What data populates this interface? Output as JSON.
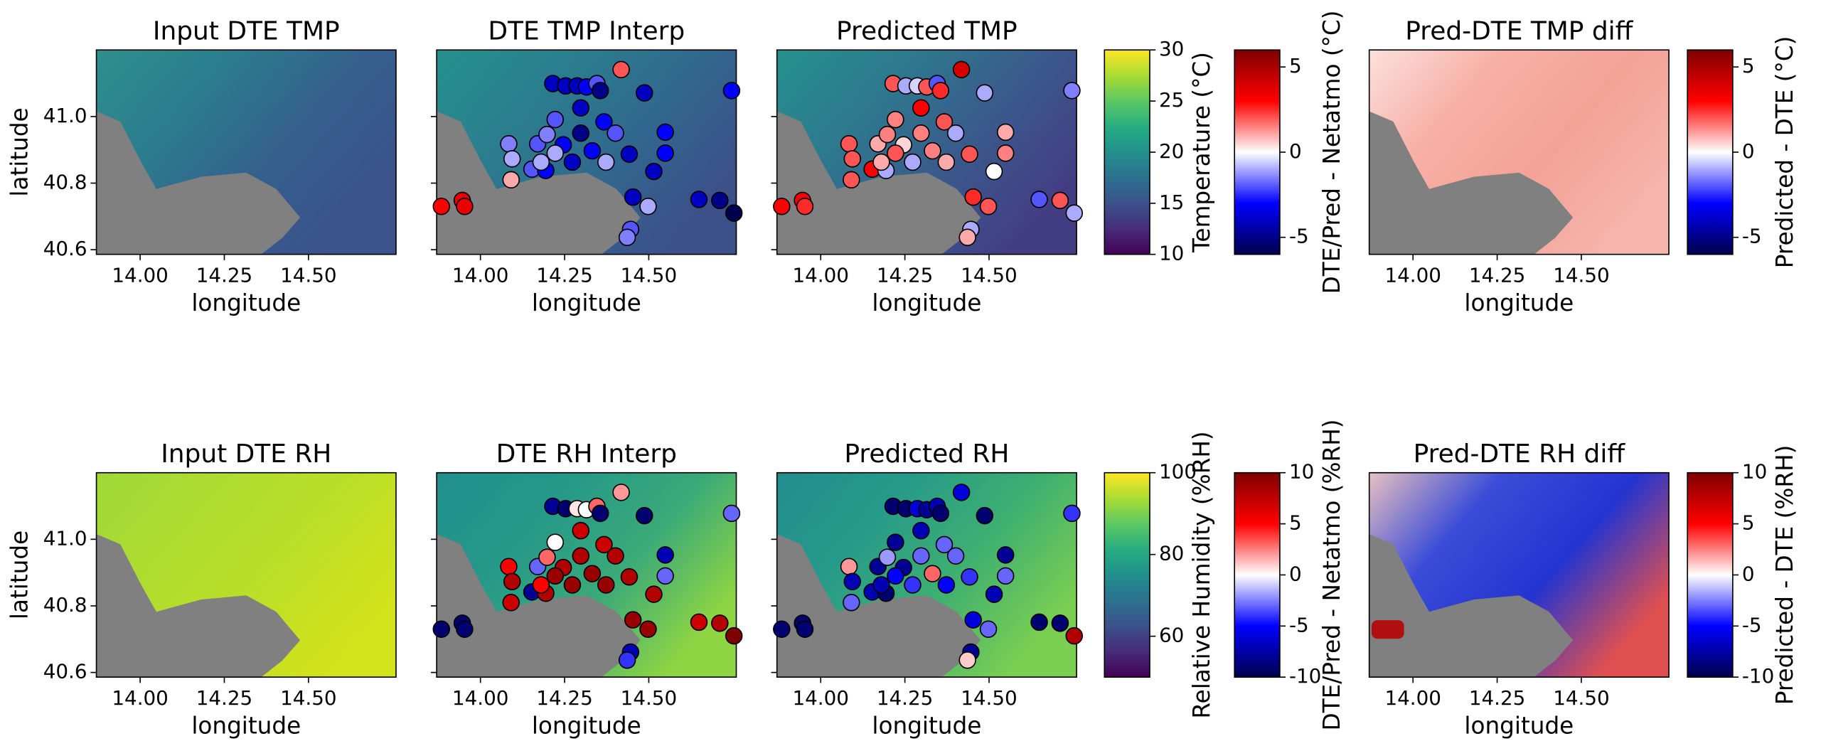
{
  "chart_data": [
    {
      "type": "map",
      "title": "Input DTE TMP",
      "x_label": "longitude",
      "y_label": "latitude",
      "xlim": [
        13.87,
        14.76
      ],
      "ylim": [
        40.586,
        41.2
      ],
      "xticks": [
        {
          "value": 14,
          "label": "14.00"
        },
        14.25,
        {
          "value": 14.5,
          "label": "14.50"
        }
      ],
      "yticks": [
        {
          "value": 41,
          "label": "41.0"
        },
        40.8,
        40.6
      ]
    },
    {
      "type": "scatter",
      "title": "DTE TMP Interp",
      "x_label": "longitude",
      "xlim": [
        13.87,
        14.76
      ],
      "ylim": [
        40.586,
        41.2
      ],
      "clim": [
        -6,
        6
      ],
      "xticks": [
        {
          "value": 14,
          "label": "14.00"
        },
        14.25,
        {
          "value": 14.5,
          "label": "14.50"
        }
      ],
      "yticks": [
        41,
        40.8,
        40.6
      ],
      "x": [
        13.884,
        13.946,
        13.953,
        14.084,
        14.094,
        14.091,
        14.153,
        14.17,
        14.194,
        14.215,
        14.222,
        14.253,
        14.287,
        14.315,
        14.346,
        14.356,
        14.418,
        14.298,
        14.298,
        14.246,
        14.222,
        14.273,
        14.332,
        14.367,
        14.401,
        14.373,
        14.442,
        14.487,
        14.549,
        14.549,
        14.515,
        14.453,
        14.498,
        14.446,
        14.436,
        14.746,
        14.649,
        14.711,
        14.753,
        14.18,
        14.198
      ],
      "y": [
        40.73,
        40.748,
        40.73,
        40.918,
        40.873,
        40.81,
        40.842,
        40.918,
        40.838,
        41.099,
        40.991,
        41.092,
        41.092,
        41.089,
        41.099,
        41.078,
        41.141,
        41.026,
        40.95,
        40.915,
        40.89,
        40.863,
        40.897,
        40.984,
        40.95,
        40.863,
        40.887,
        41.071,
        40.953,
        40.89,
        40.835,
        40.758,
        40.73,
        40.661,
        40.637,
        41.078,
        40.751,
        40.748,
        40.71,
        40.863,
        40.946
      ],
      "values": [
        3,
        3.5,
        3.5,
        -1.5,
        -1,
        1,
        -2,
        -2,
        -3,
        -4,
        -2,
        -4,
        -4,
        -3,
        -2,
        -5,
        2,
        -4,
        -5,
        -3,
        -1,
        -4,
        -3,
        -3,
        -2,
        -1,
        -4,
        -4,
        -3,
        -3,
        -4,
        -4,
        -1,
        -2,
        -1.5,
        -3,
        -4,
        -5,
        -6,
        -1,
        -1.5
      ]
    },
    {
      "type": "scatter",
      "title": "Predicted TMP",
      "x_label": "longitude",
      "xlim": [
        13.87,
        14.76
      ],
      "ylim": [
        40.586,
        41.2
      ],
      "clim": [
        -6,
        6
      ],
      "xticks": [
        {
          "value": 14,
          "label": "14.00"
        },
        14.25,
        {
          "value": 14.5,
          "label": "14.50"
        }
      ],
      "yticks": [
        41,
        40.8,
        40.6
      ],
      "x": [
        13.884,
        13.946,
        13.953,
        14.084,
        14.094,
        14.091,
        14.153,
        14.17,
        14.194,
        14.215,
        14.222,
        14.253,
        14.287,
        14.315,
        14.346,
        14.356,
        14.418,
        14.298,
        14.298,
        14.246,
        14.222,
        14.273,
        14.332,
        14.367,
        14.401,
        14.373,
        14.442,
        14.487,
        14.549,
        14.549,
        14.515,
        14.453,
        14.498,
        14.446,
        14.436,
        14.746,
        14.649,
        14.711,
        14.753,
        14.18,
        14.198
      ],
      "y": [
        40.73,
        40.748,
        40.73,
        40.918,
        40.873,
        40.81,
        40.842,
        40.918,
        40.838,
        41.099,
        40.991,
        41.092,
        41.092,
        41.089,
        41.099,
        41.078,
        41.141,
        41.026,
        40.95,
        40.915,
        40.89,
        40.863,
        40.897,
        40.984,
        40.95,
        40.863,
        40.887,
        41.071,
        40.953,
        40.89,
        40.835,
        40.758,
        40.73,
        40.661,
        40.637,
        41.078,
        40.751,
        40.748,
        40.71,
        40.863,
        40.946
      ],
      "values": [
        3,
        3,
        2.5,
        2,
        2,
        2,
        3,
        1,
        -1,
        2,
        1.5,
        -1,
        -0.5,
        2,
        -2,
        2.5,
        4,
        3,
        1.5,
        0.5,
        2,
        -1,
        1.5,
        2,
        -1,
        1,
        2,
        -1,
        1,
        1.5,
        0,
        2.5,
        2,
        -1,
        1,
        -1.5,
        -2,
        2,
        -1,
        1,
        1.5
      ]
    },
    {
      "type": "map",
      "title": "Pred-DTE TMP diff",
      "x_label": "longitude",
      "xlim": [
        13.87,
        14.76
      ],
      "ylim": [
        40.586,
        41.2
      ],
      "xticks": [
        {
          "value": 14,
          "label": "14.00"
        },
        14.25,
        {
          "value": 14.5,
          "label": "14.50"
        }
      ]
    },
    {
      "type": "map",
      "title": "Input DTE RH",
      "x_label": "longitude",
      "y_label": "latitude",
      "xlim": [
        13.87,
        14.76
      ],
      "ylim": [
        40.586,
        41.2
      ],
      "xticks": [
        {
          "value": 14,
          "label": "14.00"
        },
        14.25,
        {
          "value": 14.5,
          "label": "14.50"
        }
      ],
      "yticks": [
        {
          "value": 41,
          "label": "41.0"
        },
        40.8,
        40.6
      ]
    },
    {
      "type": "scatter",
      "title": "DTE RH Interp",
      "x_label": "longitude",
      "xlim": [
        13.87,
        14.76
      ],
      "ylim": [
        40.586,
        41.2
      ],
      "clim": [
        -10,
        10
      ],
      "xticks": [
        {
          "value": 14,
          "label": "14.00"
        },
        14.25,
        {
          "value": 14.5,
          "label": "14.50"
        }
      ],
      "yticks": [
        41,
        40.8,
        40.6
      ],
      "x": [
        13.884,
        13.946,
        13.953,
        14.084,
        14.094,
        14.091,
        14.153,
        14.17,
        14.194,
        14.215,
        14.222,
        14.253,
        14.287,
        14.315,
        14.346,
        14.356,
        14.418,
        14.298,
        14.298,
        14.246,
        14.222,
        14.273,
        14.332,
        14.367,
        14.401,
        14.373,
        14.442,
        14.487,
        14.549,
        14.549,
        14.515,
        14.453,
        14.498,
        14.446,
        14.436,
        14.746,
        14.649,
        14.711,
        14.753,
        14.18,
        14.198
      ],
      "y": [
        40.73,
        40.748,
        40.73,
        40.918,
        40.873,
        40.81,
        40.842,
        40.918,
        40.838,
        41.099,
        40.991,
        41.092,
        41.092,
        41.089,
        41.099,
        41.078,
        41.141,
        41.026,
        40.95,
        40.915,
        40.89,
        40.863,
        40.897,
        40.984,
        40.95,
        40.863,
        40.887,
        41.071,
        40.953,
        40.89,
        40.835,
        40.758,
        40.73,
        40.661,
        40.637,
        41.078,
        40.751,
        40.748,
        40.71,
        40.863,
        40.946
      ],
      "values": [
        -9,
        -9,
        -9,
        5,
        8,
        7,
        -8,
        -3,
        8,
        -8,
        0,
        -9,
        0.5,
        0,
        3,
        -9,
        2,
        7,
        8,
        8,
        9,
        9,
        9,
        7,
        8,
        9,
        8,
        -9,
        -7,
        -3,
        8,
        9,
        9,
        -7,
        -4,
        -3,
        7,
        8,
        10,
        5,
        3
      ]
    },
    {
      "type": "scatter",
      "title": "Predicted RH",
      "x_label": "longitude",
      "xlim": [
        13.87,
        14.76
      ],
      "ylim": [
        40.586,
        41.2
      ],
      "clim": [
        -10,
        10
      ],
      "xticks": [
        {
          "value": 14,
          "label": "14.00"
        },
        14.25,
        {
          "value": 14.5,
          "label": "14.50"
        }
      ],
      "yticks": [
        41,
        40.8,
        40.6
      ],
      "x": [
        13.884,
        13.946,
        13.953,
        14.084,
        14.094,
        14.091,
        14.153,
        14.17,
        14.194,
        14.215,
        14.222,
        14.253,
        14.287,
        14.315,
        14.346,
        14.356,
        14.418,
        14.298,
        14.298,
        14.246,
        14.222,
        14.273,
        14.332,
        14.367,
        14.401,
        14.373,
        14.442,
        14.487,
        14.549,
        14.549,
        14.515,
        14.453,
        14.498,
        14.446,
        14.436,
        14.746,
        14.649,
        14.711,
        14.753,
        14.18,
        14.198
      ],
      "y": [
        40.73,
        40.748,
        40.73,
        40.918,
        40.873,
        40.81,
        40.842,
        40.918,
        40.838,
        41.099,
        40.991,
        41.092,
        41.092,
        41.089,
        41.099,
        41.078,
        41.141,
        41.026,
        40.95,
        40.915,
        40.89,
        40.863,
        40.897,
        40.984,
        40.95,
        40.863,
        40.887,
        41.071,
        40.953,
        40.89,
        40.835,
        40.758,
        40.73,
        40.661,
        40.637,
        41.078,
        40.751,
        40.748,
        40.71,
        40.863,
        40.946
      ],
      "values": [
        -9,
        -9,
        -9,
        2,
        -7,
        -3,
        -7,
        -8,
        -9,
        -9,
        -8,
        -9,
        -6,
        -8,
        -7,
        -9,
        -6,
        -7,
        -3,
        -8,
        -5,
        -4,
        3,
        -3,
        -3,
        -5,
        -4,
        -9,
        -8,
        -3,
        -7,
        -6,
        -3,
        -8,
        1,
        -4,
        -9,
        -9,
        8,
        -7,
        -2
      ]
    },
    {
      "type": "map",
      "title": "Pred-DTE RH diff",
      "x_label": "longitude",
      "xlim": [
        13.87,
        14.76
      ],
      "ylim": [
        40.586,
        41.2
      ],
      "xticks": [
        {
          "value": 14,
          "label": "14.00"
        },
        14.25,
        {
          "value": 14.5,
          "label": "14.50"
        }
      ]
    }
  ],
  "colorbars": [
    {
      "label": "Temperature (°C)",
      "cmap": "viridis",
      "lim": [
        10,
        30
      ],
      "ticks": [
        10,
        15,
        20,
        25,
        30
      ]
    },
    {
      "label": "DTE/Pred - Netatmo (°C)",
      "cmap": "seismic",
      "lim": [
        -6,
        6
      ],
      "ticks": [
        -5,
        0,
        5
      ]
    },
    {
      "label": "Predicted - DTE (°C)",
      "cmap": "seismic",
      "lim": [
        -6,
        6
      ],
      "ticks": [
        -5,
        0,
        5
      ]
    },
    {
      "label": "Relative Humidity (%RH)",
      "cmap": "viridis",
      "lim": [
        50,
        100
      ],
      "ticks": [
        60,
        80,
        100
      ]
    },
    {
      "label": "DTE/Pred - Netatmo (%RH)",
      "cmap": "seismic",
      "lim": [
        -10,
        10
      ],
      "ticks": [
        -10,
        -5,
        0,
        5,
        10
      ]
    },
    {
      "label": "Predicted - DTE (%RH)",
      "cmap": "seismic",
      "lim": [
        -10,
        10
      ],
      "ticks": [
        -10,
        -5,
        0,
        5,
        10
      ]
    }
  ]
}
